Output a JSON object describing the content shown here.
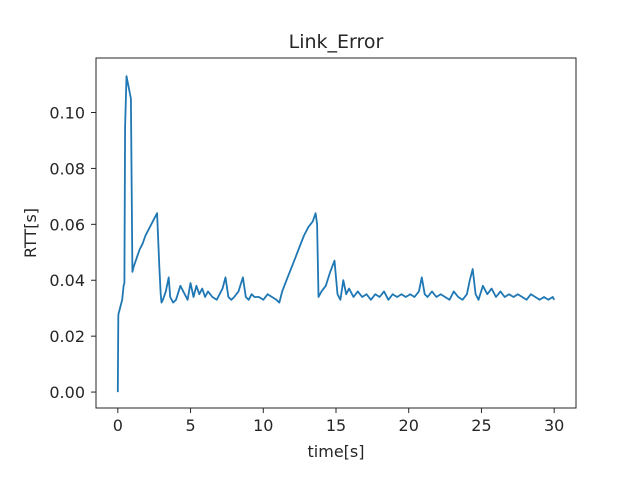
{
  "chart_data": {
    "type": "line",
    "title": "Link_Error",
    "xlabel": "time[s]",
    "ylabel": "RTT[s]",
    "xlim": [
      -1.5,
      31.5
    ],
    "ylim": [
      -0.0057,
      0.1195
    ],
    "xticks": [
      0,
      5,
      10,
      15,
      20,
      25,
      30
    ],
    "yticks": [
      0.0,
      0.02,
      0.04,
      0.06,
      0.08,
      0.1
    ],
    "xtick_labels": [
      "0",
      "5",
      "10",
      "15",
      "20",
      "25",
      "30"
    ],
    "ytick_labels": [
      "0.00",
      "0.02",
      "0.04",
      "0.06",
      "0.08",
      "0.10"
    ],
    "grid": false,
    "line_color": "#1f77b4",
    "series": [
      {
        "x": [
          0.0,
          0.03,
          0.05,
          0.1,
          0.2,
          0.3,
          0.4,
          0.45,
          0.5,
          0.6,
          0.9,
          1.0,
          1.1,
          1.3,
          1.5,
          1.7,
          1.9,
          2.1,
          2.3,
          2.5,
          2.7,
          2.85,
          2.95,
          3.0,
          3.1,
          3.3,
          3.5,
          3.6,
          3.8,
          4.0,
          4.3,
          4.6,
          4.8,
          5.0,
          5.2,
          5.4,
          5.6,
          5.8,
          6.0,
          6.2,
          6.5,
          6.8,
          7.0,
          7.2,
          7.4,
          7.6,
          7.8,
          8.0,
          8.3,
          8.6,
          8.8,
          9.0,
          9.2,
          9.4,
          9.7,
          10.0,
          10.3,
          10.6,
          10.9,
          11.1,
          11.3,
          11.6,
          11.9,
          12.2,
          12.5,
          12.8,
          13.1,
          13.4,
          13.6,
          13.7,
          13.8,
          14.0,
          14.3,
          14.6,
          14.9,
          15.1,
          15.3,
          15.5,
          15.7,
          15.9,
          16.2,
          16.5,
          16.8,
          17.1,
          17.4,
          17.7,
          18.0,
          18.3,
          18.6,
          18.9,
          19.2,
          19.5,
          19.8,
          20.1,
          20.4,
          20.7,
          20.9,
          21.1,
          21.3,
          21.6,
          21.9,
          22.2,
          22.5,
          22.8,
          23.1,
          23.4,
          23.7,
          24.0,
          24.2,
          24.4,
          24.6,
          24.8,
          25.1,
          25.4,
          25.7,
          26.0,
          26.3,
          26.6,
          26.9,
          27.2,
          27.5,
          27.8,
          28.1,
          28.4,
          28.7,
          29.0,
          29.3,
          29.6,
          29.9,
          30.0
        ],
        "values": [
          0.0,
          0.027,
          0.028,
          0.029,
          0.031,
          0.033,
          0.038,
          0.039,
          0.095,
          0.113,
          0.105,
          0.043,
          0.045,
          0.048,
          0.051,
          0.053,
          0.056,
          0.058,
          0.06,
          0.062,
          0.064,
          0.045,
          0.035,
          0.032,
          0.033,
          0.036,
          0.041,
          0.034,
          0.032,
          0.033,
          0.038,
          0.035,
          0.033,
          0.039,
          0.034,
          0.038,
          0.035,
          0.037,
          0.034,
          0.036,
          0.034,
          0.033,
          0.035,
          0.037,
          0.041,
          0.034,
          0.033,
          0.034,
          0.036,
          0.041,
          0.034,
          0.033,
          0.035,
          0.034,
          0.034,
          0.033,
          0.035,
          0.034,
          0.033,
          0.032,
          0.036,
          0.04,
          0.044,
          0.048,
          0.052,
          0.056,
          0.059,
          0.061,
          0.064,
          0.06,
          0.034,
          0.036,
          0.038,
          0.043,
          0.047,
          0.035,
          0.033,
          0.04,
          0.035,
          0.037,
          0.034,
          0.036,
          0.034,
          0.035,
          0.033,
          0.035,
          0.034,
          0.036,
          0.033,
          0.035,
          0.034,
          0.035,
          0.034,
          0.035,
          0.034,
          0.036,
          0.041,
          0.035,
          0.034,
          0.036,
          0.034,
          0.035,
          0.034,
          0.033,
          0.036,
          0.034,
          0.033,
          0.035,
          0.04,
          0.044,
          0.035,
          0.033,
          0.038,
          0.035,
          0.037,
          0.034,
          0.036,
          0.034,
          0.035,
          0.034,
          0.035,
          0.034,
          0.033,
          0.035,
          0.034,
          0.033,
          0.034,
          0.033,
          0.034,
          0.033
        ]
      }
    ]
  }
}
